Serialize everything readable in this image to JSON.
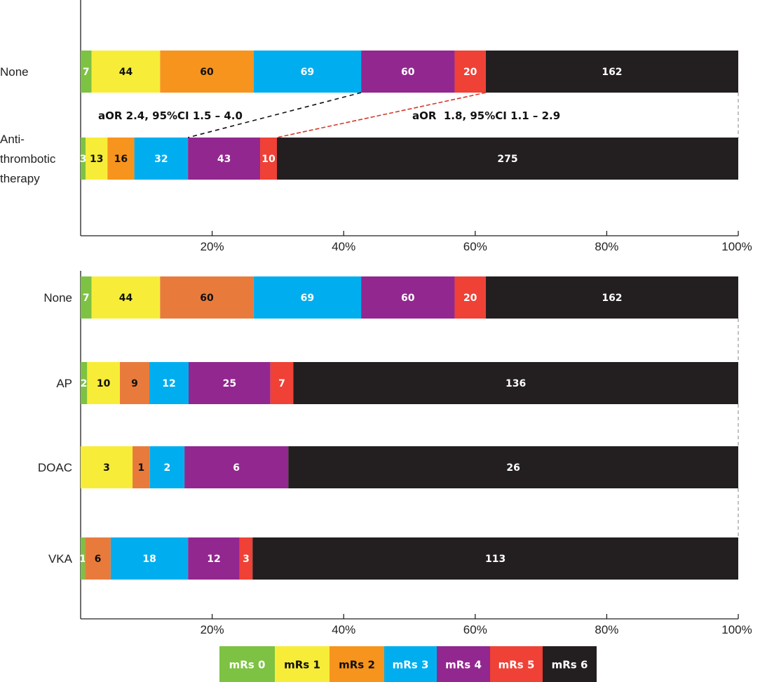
{
  "colors": {
    "mRs 0": "#7dc242",
    "mRs 1": "#f7ed38",
    "mRs 2a": "#f7941d",
    "mRs 2b": "#e87b3c",
    "mRs 3": "#00aeef",
    "mRs 4": "#92278f",
    "mRs 5": "#ef4136",
    "mRs 6": "#231f20"
  },
  "legend": [
    "mRs 0",
    "mRs 1",
    "mRs 2",
    "mRs 3",
    "mRs 4",
    "mRs 5",
    "mRs 6"
  ],
  "chart_data": [
    {
      "type": "bar",
      "orientation": "horizontal",
      "stacked": "percent",
      "categories": [
        "None",
        "Anti-thrombotic therapy"
      ],
      "category_lines": [
        [
          "None"
        ],
        [
          "Anti-",
          "thrombotic",
          "therapy"
        ]
      ],
      "series": [
        {
          "name": "mRs 0",
          "values": [
            7,
            3
          ]
        },
        {
          "name": "mRs 1",
          "values": [
            44,
            13
          ]
        },
        {
          "name": "mRs 2",
          "values": [
            60,
            16
          ]
        },
        {
          "name": "mRs 3",
          "values": [
            69,
            32
          ]
        },
        {
          "name": "mRs 4",
          "values": [
            60,
            43
          ]
        },
        {
          "name": "mRs 5",
          "values": [
            20,
            10
          ]
        },
        {
          "name": "mRs 6",
          "values": [
            162,
            275
          ]
        }
      ],
      "xticks": [
        "20%",
        "40%",
        "60%",
        "80%",
        "100%"
      ],
      "annotations": [
        "aOR 2.4, 95%CI 1.5 – 4.0",
        "aOR  1.8, 95%CI 1.1 – 2.9"
      ]
    },
    {
      "type": "bar",
      "orientation": "horizontal",
      "stacked": "percent",
      "categories": [
        "None",
        "AP",
        "DOAC",
        "VKA"
      ],
      "series": [
        {
          "name": "mRs 0",
          "values": [
            7,
            2,
            0,
            1
          ]
        },
        {
          "name": "mRs 1",
          "values": [
            44,
            10,
            3,
            0
          ]
        },
        {
          "name": "mRs 2",
          "values": [
            60,
            9,
            1,
            6
          ]
        },
        {
          "name": "mRs 3",
          "values": [
            69,
            12,
            2,
            18
          ]
        },
        {
          "name": "mRs 4",
          "values": [
            60,
            25,
            6,
            12
          ]
        },
        {
          "name": "mRs 5",
          "values": [
            20,
            7,
            0,
            3
          ]
        },
        {
          "name": "mRs 6",
          "values": [
            162,
            136,
            26,
            113
          ]
        }
      ],
      "xticks": [
        "20%",
        "40%",
        "60%",
        "80%",
        "100%"
      ]
    }
  ]
}
